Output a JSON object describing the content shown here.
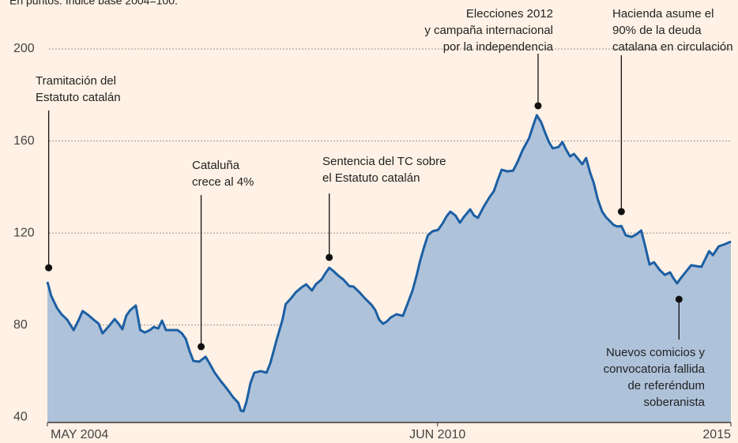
{
  "chart_data": {
    "type": "area",
    "subtitle": "En puntos. Índice base 2004=100.",
    "color": "#1c5fa3",
    "fill": "#aec2da",
    "background": "#fff1e5",
    "grid": true,
    "ylim": [
      38,
      200
    ],
    "yticks": [
      40,
      80,
      120,
      160,
      200
    ],
    "xlim": [
      2004.33,
      2015.0
    ],
    "xticks": [
      {
        "value": 2004.33,
        "label": "MAY 2004"
      },
      {
        "value": 2010.42,
        "label": "JUN 2010"
      },
      {
        "value": 2015.0,
        "label": "2015"
      }
    ],
    "x": [
      2004.33,
      2004.39,
      2004.48,
      2004.55,
      2004.64,
      2004.74,
      2004.82,
      2004.88,
      2004.97,
      2005.07,
      2005.13,
      2005.19,
      2005.29,
      2005.38,
      2005.44,
      2005.5,
      2005.56,
      2005.62,
      2005.71,
      2005.78,
      2005.85,
      2005.93,
      2005.99,
      2006.06,
      2006.12,
      2006.18,
      2006.36,
      2006.43,
      2006.49,
      2006.55,
      2006.61,
      2006.7,
      2006.8,
      2006.86,
      2006.94,
      2007.04,
      2007.13,
      2007.23,
      2007.31,
      2007.35,
      2007.39,
      2007.44,
      2007.5,
      2007.56,
      2007.66,
      2007.75,
      2007.81,
      2007.91,
      2008.0,
      2008.05,
      2008.13,
      2008.21,
      2008.3,
      2008.37,
      2008.46,
      2008.52,
      2008.61,
      2008.67,
      2008.73,
      2008.79,
      2008.87,
      2008.95,
      2009.04,
      2009.11,
      2009.2,
      2009.29,
      2009.39,
      2009.45,
      2009.51,
      2009.57,
      2009.63,
      2009.69,
      2009.78,
      2009.88,
      2009.96,
      2010.03,
      2010.09,
      2010.15,
      2010.21,
      2010.27,
      2010.34,
      2010.43,
      2010.5,
      2010.56,
      2010.62,
      2010.7,
      2010.77,
      2010.83,
      2010.93,
      2010.99,
      2011.05,
      2011.14,
      2011.23,
      2011.3,
      2011.36,
      2011.42,
      2011.51,
      2011.6,
      2011.67,
      2011.75,
      2011.85,
      2011.91,
      2011.97,
      2012.04,
      2012.1,
      2012.16,
      2012.22,
      2012.31,
      2012.37,
      2012.43,
      2012.49,
      2012.55,
      2012.62,
      2012.68,
      2012.74,
      2012.8,
      2012.86,
      2012.92,
      2012.99,
      2013.05,
      2013.11,
      2013.17,
      2013.23,
      2013.29,
      2013.36,
      2013.45,
      2013.52,
      2013.6,
      2013.66,
      2013.73,
      2013.8,
      2013.89,
      2013.97,
      2014.05,
      2014.1,
      2014.16,
      2014.22,
      2014.29,
      2014.38,
      2014.46,
      2014.54,
      2014.6,
      2014.66,
      2014.72,
      2014.81,
      2014.91,
      2015.0
    ],
    "values": [
      98.8,
      92.6,
      87.4,
      84.7,
      82.3,
      77.8,
      82.3,
      86.1,
      84.3,
      81.9,
      80.6,
      76.4,
      79.5,
      82.6,
      80.6,
      78.2,
      84.0,
      86.4,
      88.5,
      77.8,
      76.8,
      77.8,
      79.2,
      78.5,
      81.9,
      77.8,
      77.8,
      76.4,
      74.0,
      68.6,
      64.4,
      64.1,
      66.2,
      63.4,
      59.3,
      55.5,
      52.4,
      48.6,
      46.2,
      42.8,
      42.5,
      46.9,
      54.8,
      59.3,
      60.0,
      59.3,
      63.4,
      73.7,
      82.3,
      89.1,
      91.5,
      94.3,
      96.4,
      97.7,
      95.0,
      97.7,
      99.8,
      102.5,
      104.9,
      103.6,
      101.5,
      99.8,
      97.0,
      96.7,
      94.3,
      91.5,
      88.8,
      86.4,
      82.3,
      80.6,
      81.6,
      83.3,
      84.7,
      84.0,
      89.8,
      95.0,
      101.2,
      108.0,
      113.9,
      119.0,
      120.7,
      121.4,
      124.2,
      127.2,
      129.3,
      127.6,
      124.5,
      126.9,
      130.3,
      127.6,
      126.6,
      131.4,
      135.5,
      138.2,
      143.0,
      147.5,
      146.8,
      147.1,
      150.9,
      156.1,
      161.2,
      166.4,
      171.2,
      168.1,
      163.6,
      159.5,
      156.8,
      157.4,
      159.5,
      156.1,
      153.3,
      154.4,
      152.0,
      149.9,
      152.6,
      146.5,
      141.7,
      134.8,
      129.3,
      126.9,
      125.2,
      123.5,
      122.8,
      123.1,
      119.0,
      118.3,
      119.3,
      121.1,
      114.5,
      106.3,
      107.3,
      103.9,
      101.8,
      102.9,
      100.5,
      98.1,
      100.5,
      102.9,
      106.0,
      105.6,
      105.3,
      108.7,
      112.1,
      110.4,
      114.2,
      115.2,
      116.3
    ],
    "annotations": [
      {
        "text": [
          "Tramitación del",
          "Estatuto catalán"
        ],
        "x": 2004.35,
        "y": 104.9
      },
      {
        "text": [
          "Cataluña",
          "crece al 4%"
        ],
        "x": 2006.73,
        "y": 70.6
      },
      {
        "text": [
          "Sentencia del TC sobre",
          "el Estatuto catalán"
        ],
        "x": 2008.73,
        "y": 109.4
      },
      {
        "text": [
          "Elecciones 2012",
          "y campaña internacional",
          "por la independencia"
        ],
        "x": 2011.99,
        "y": 175.3
      },
      {
        "text": [
          "Hacienda asume el",
          "90% de la deuda",
          "catalana en circulación"
        ],
        "x": 2013.29,
        "y": 129.3
      },
      {
        "text": [
          "Nuevos comicios y",
          "convocatoria fallida",
          "de referéndum",
          "soberanista"
        ],
        "x": 2014.19,
        "y": 91.2
      }
    ]
  }
}
